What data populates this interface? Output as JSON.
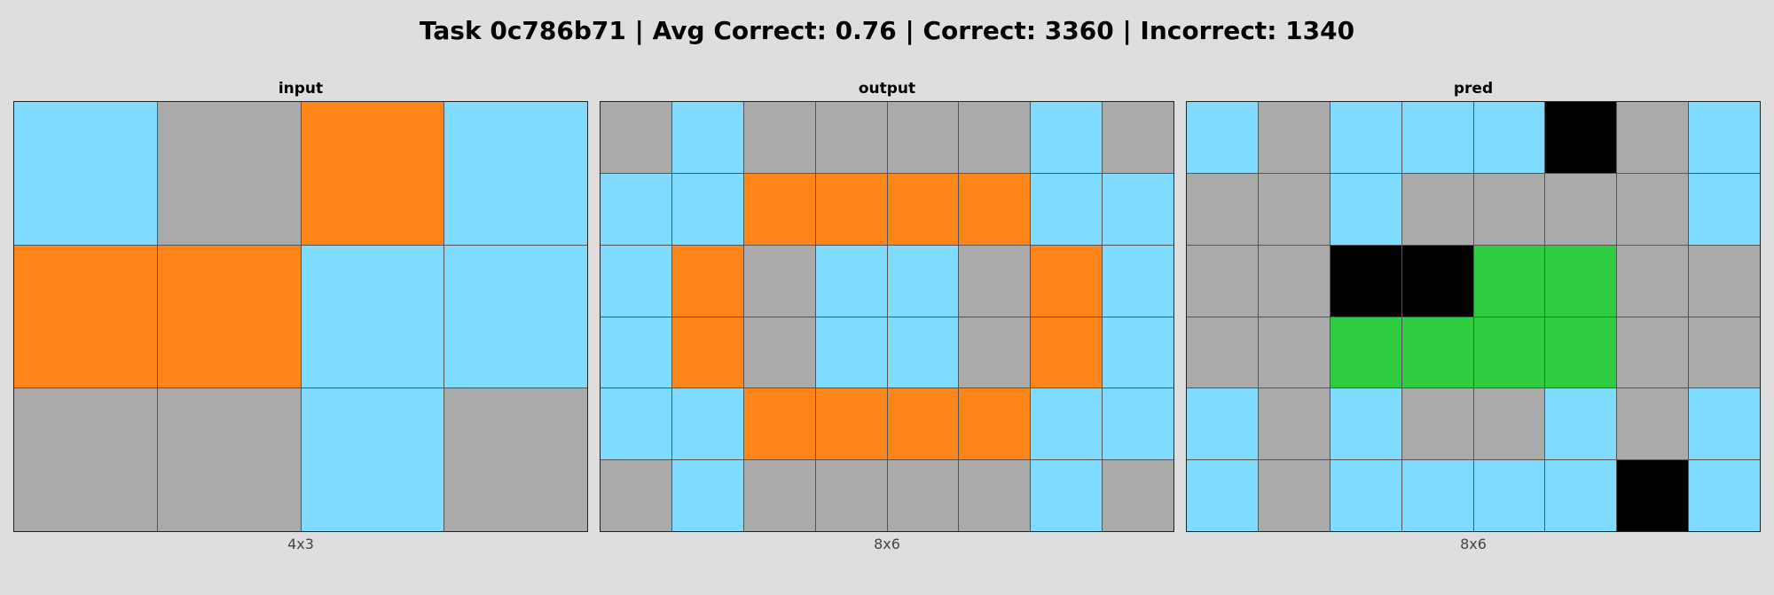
{
  "title": "Task 0c786b71 | Avg Correct: 0.76 | Correct: 3360 | Incorrect: 1340",
  "colors": {
    "0": "#000000",
    "3": "#2ecc40",
    "5": "#aaaaaa",
    "7": "#ff851b",
    "8": "#7fdbff"
  },
  "panels": [
    {
      "label": "input",
      "dims": "4x3",
      "grid": [
        [
          8,
          5,
          7,
          8
        ],
        [
          7,
          7,
          8,
          8
        ],
        [
          5,
          5,
          8,
          5
        ]
      ]
    },
    {
      "label": "output",
      "dims": "8x6",
      "grid": [
        [
          5,
          8,
          5,
          5,
          5,
          5,
          8,
          5
        ],
        [
          8,
          8,
          7,
          7,
          7,
          7,
          8,
          8
        ],
        [
          8,
          7,
          5,
          8,
          8,
          5,
          7,
          8
        ],
        [
          8,
          7,
          5,
          8,
          8,
          5,
          7,
          8
        ],
        [
          8,
          8,
          7,
          7,
          7,
          7,
          8,
          8
        ],
        [
          5,
          8,
          5,
          5,
          5,
          5,
          8,
          5
        ]
      ]
    },
    {
      "label": "pred",
      "dims": "8x6",
      "grid": [
        [
          8,
          5,
          8,
          8,
          8,
          0,
          5,
          8
        ],
        [
          5,
          5,
          8,
          5,
          5,
          5,
          5,
          8
        ],
        [
          5,
          5,
          0,
          0,
          3,
          3,
          5,
          5
        ],
        [
          5,
          5,
          3,
          3,
          3,
          3,
          5,
          5
        ],
        [
          8,
          5,
          8,
          5,
          5,
          8,
          5,
          8
        ],
        [
          8,
          5,
          8,
          8,
          8,
          8,
          0,
          8
        ]
      ]
    }
  ]
}
